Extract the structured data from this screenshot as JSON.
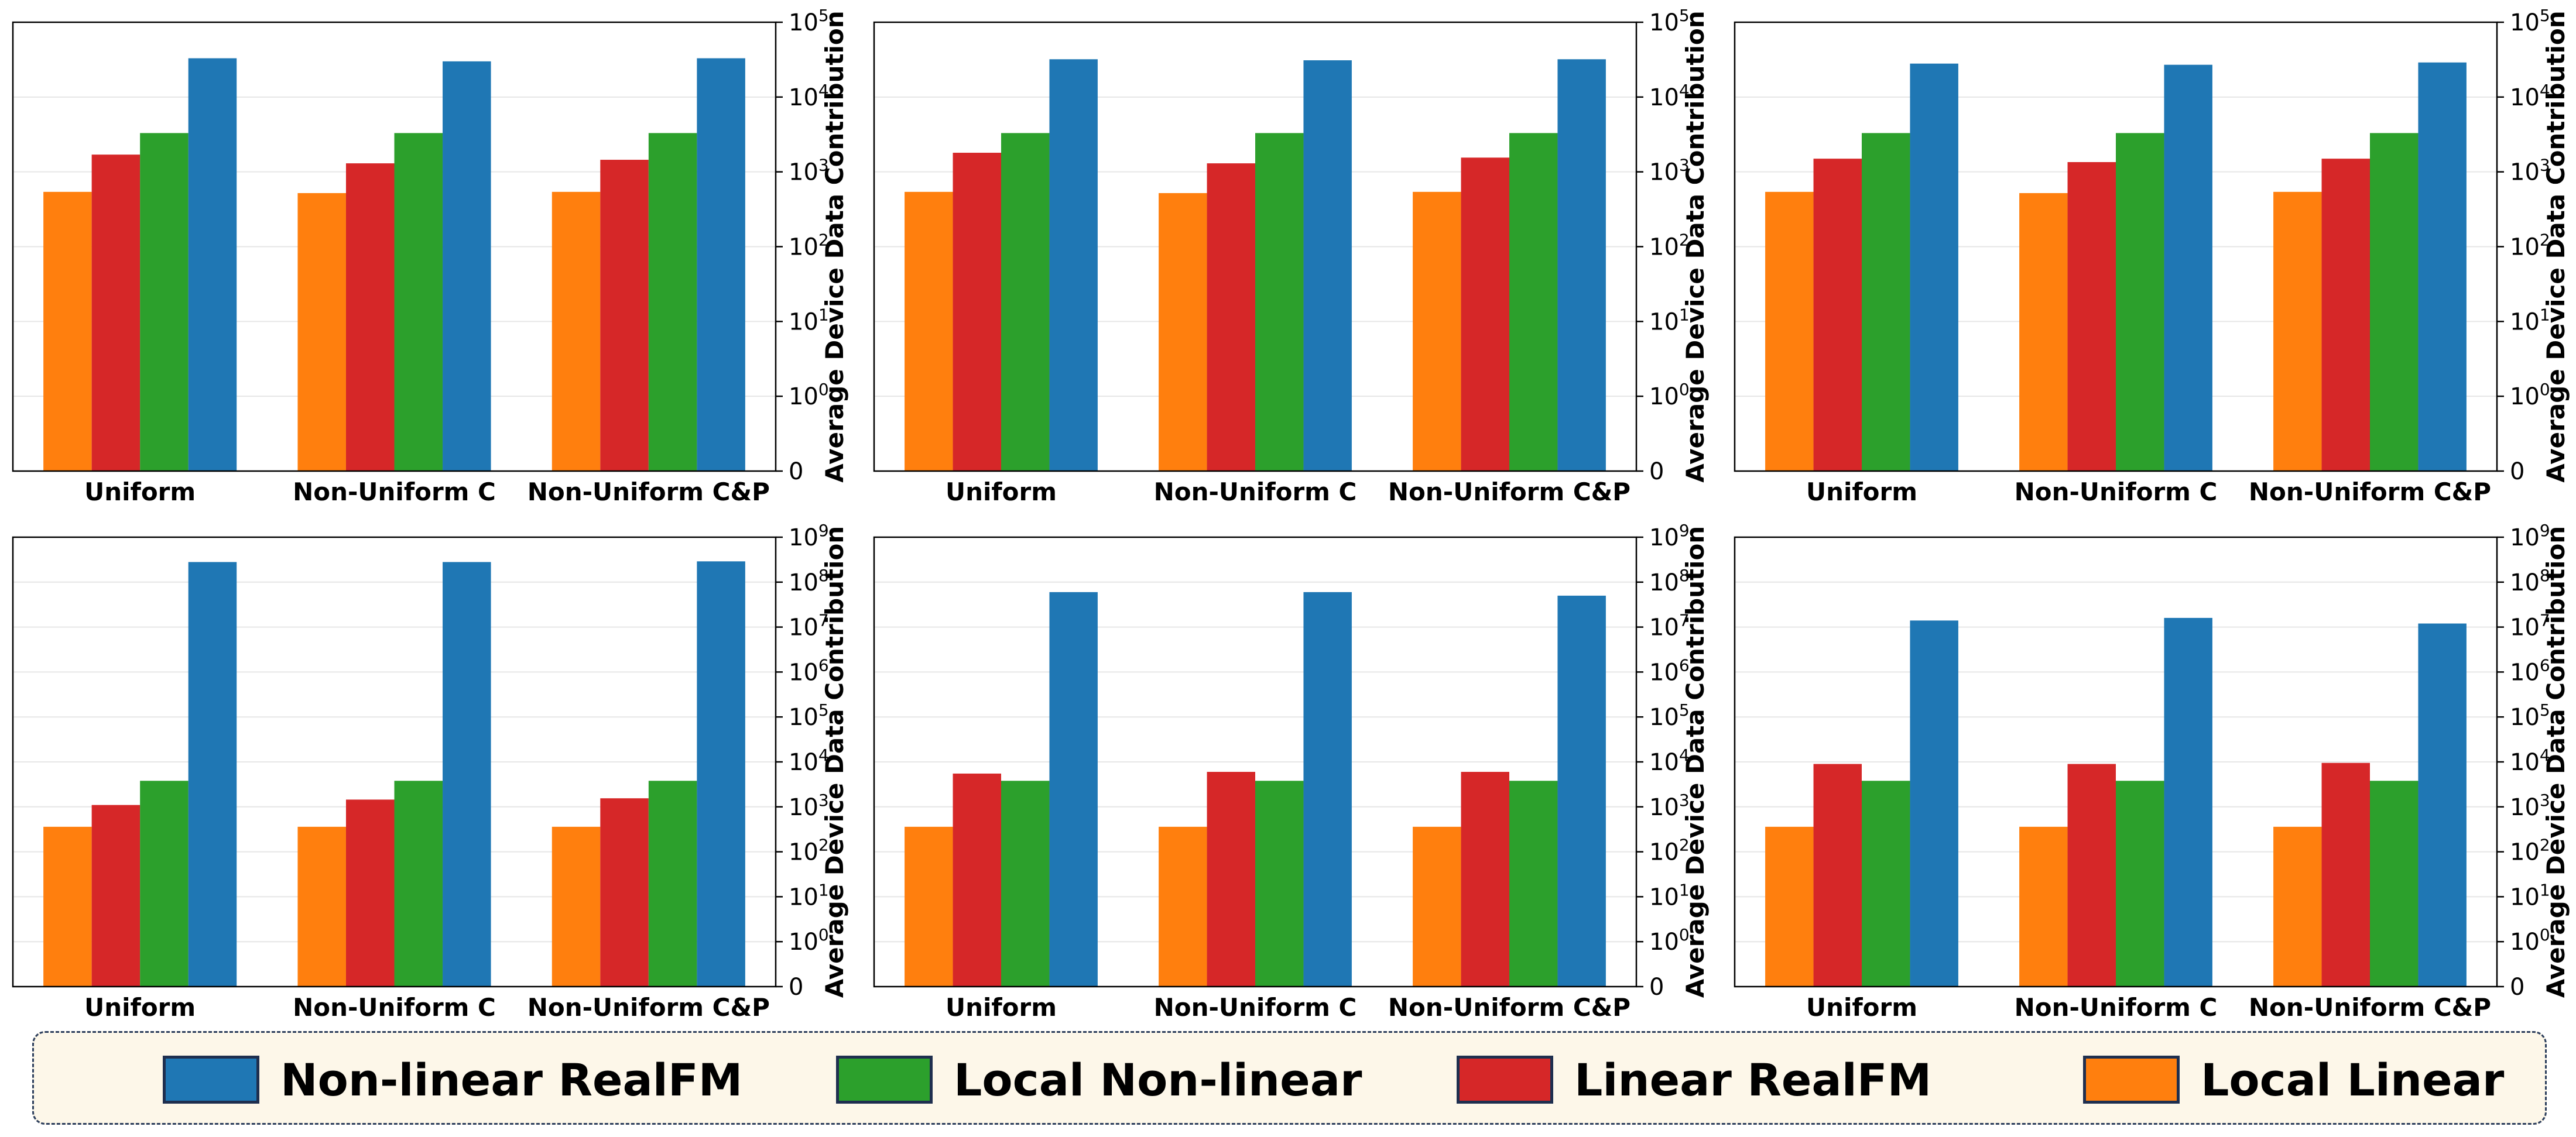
{
  "legend": {
    "items": [
      {
        "label": "Non-linear RealFM",
        "color": "#1f77b4"
      },
      {
        "label": "Local Non-linear",
        "color": "#2ca02c"
      },
      {
        "label": "Linear RealFM",
        "color": "#d62728"
      },
      {
        "label": "Local Linear",
        "color": "#ff7f0e"
      }
    ]
  },
  "chart_data": [
    {
      "type": "bar",
      "yscale": "symlog",
      "ylabel": "Average Device Data Contribution",
      "ylim": [
        0,
        100000
      ],
      "yticks": [
        "0",
        "10^0",
        "10^1",
        "10^2",
        "10^3",
        "10^4",
        "10^5"
      ],
      "categories": [
        "Uniform",
        "Non-Uniform C",
        "Non-Uniform C&P"
      ],
      "grid": true,
      "series": [
        {
          "name": "Local Linear",
          "color": "#ff7f0e",
          "values": [
            540,
            520,
            540
          ]
        },
        {
          "name": "Linear RealFM",
          "color": "#d62728",
          "values": [
            1700,
            1300,
            1450
          ]
        },
        {
          "name": "Local Non-linear",
          "color": "#2ca02c",
          "values": [
            3300,
            3300,
            3300
          ]
        },
        {
          "name": "Non-linear RealFM",
          "color": "#1f77b4",
          "values": [
            33000,
            30000,
            33000
          ]
        }
      ]
    },
    {
      "type": "bar",
      "yscale": "symlog",
      "ylabel": "Average Device Data Contribution",
      "ylim": [
        0,
        100000
      ],
      "yticks": [
        "0",
        "10^0",
        "10^1",
        "10^2",
        "10^3",
        "10^4",
        "10^5"
      ],
      "categories": [
        "Uniform",
        "Non-Uniform C",
        "Non-Uniform C&P"
      ],
      "grid": true,
      "series": [
        {
          "name": "Local Linear",
          "color": "#ff7f0e",
          "values": [
            540,
            520,
            540
          ]
        },
        {
          "name": "Linear RealFM",
          "color": "#d62728",
          "values": [
            1800,
            1300,
            1550
          ]
        },
        {
          "name": "Local Non-linear",
          "color": "#2ca02c",
          "values": [
            3300,
            3300,
            3300
          ]
        },
        {
          "name": "Non-linear RealFM",
          "color": "#1f77b4",
          "values": [
            32000,
            31000,
            32000
          ]
        }
      ]
    },
    {
      "type": "bar",
      "yscale": "symlog",
      "ylabel": "Average Device Data Contribution",
      "ylim": [
        0,
        100000
      ],
      "yticks": [
        "0",
        "10^0",
        "10^1",
        "10^2",
        "10^3",
        "10^4",
        "10^5"
      ],
      "categories": [
        "Uniform",
        "Non-Uniform C",
        "Non-Uniform C&P"
      ],
      "grid": true,
      "series": [
        {
          "name": "Local Linear",
          "color": "#ff7f0e",
          "values": [
            540,
            520,
            540
          ]
        },
        {
          "name": "Linear RealFM",
          "color": "#d62728",
          "values": [
            1500,
            1350,
            1500
          ]
        },
        {
          "name": "Local Non-linear",
          "color": "#2ca02c",
          "values": [
            3300,
            3300,
            3300
          ]
        },
        {
          "name": "Non-linear RealFM",
          "color": "#1f77b4",
          "values": [
            28000,
            27000,
            29000
          ]
        }
      ]
    },
    {
      "type": "bar",
      "yscale": "symlog",
      "ylabel": "Average Device Data Contribution",
      "ylim": [
        0,
        1000000000
      ],
      "yticks": [
        "0",
        "10^0",
        "10^1",
        "10^2",
        "10^3",
        "10^4",
        "10^5",
        "10^6",
        "10^7",
        "10^8",
        "10^9"
      ],
      "categories": [
        "Uniform",
        "Non-Uniform C",
        "Non-Uniform C&P"
      ],
      "grid": true,
      "series": [
        {
          "name": "Local Linear",
          "color": "#ff7f0e",
          "values": [
            360,
            360,
            360
          ]
        },
        {
          "name": "Linear RealFM",
          "color": "#d62728",
          "values": [
            1100,
            1450,
            1550
          ]
        },
        {
          "name": "Local Non-linear",
          "color": "#2ca02c",
          "values": [
            3800,
            3800,
            3800
          ]
        },
        {
          "name": "Non-linear RealFM",
          "color": "#1f77b4",
          "values": [
            280000000,
            280000000,
            290000000
          ]
        }
      ]
    },
    {
      "type": "bar",
      "yscale": "symlog",
      "ylabel": "Average Device Data Contribution",
      "ylim": [
        0,
        1000000000
      ],
      "yticks": [
        "0",
        "10^0",
        "10^1",
        "10^2",
        "10^3",
        "10^4",
        "10^5",
        "10^6",
        "10^7",
        "10^8",
        "10^9"
      ],
      "categories": [
        "Uniform",
        "Non-Uniform C",
        "Non-Uniform C&P"
      ],
      "grid": true,
      "series": [
        {
          "name": "Local Linear",
          "color": "#ff7f0e",
          "values": [
            360,
            360,
            360
          ]
        },
        {
          "name": "Linear RealFM",
          "color": "#d62728",
          "values": [
            5500,
            6000,
            6000
          ]
        },
        {
          "name": "Local Non-linear",
          "color": "#2ca02c",
          "values": [
            3800,
            3800,
            3800
          ]
        },
        {
          "name": "Non-linear RealFM",
          "color": "#1f77b4",
          "values": [
            60000000,
            60000000,
            50000000
          ]
        }
      ]
    },
    {
      "type": "bar",
      "yscale": "symlog",
      "ylabel": "Average Device Data Contribution",
      "ylim": [
        0,
        1000000000
      ],
      "yticks": [
        "0",
        "10^0",
        "10^1",
        "10^2",
        "10^3",
        "10^4",
        "10^5",
        "10^6",
        "10^7",
        "10^8",
        "10^9"
      ],
      "categories": [
        "Uniform",
        "Non-Uniform C",
        "Non-Uniform C&P"
      ],
      "grid": true,
      "series": [
        {
          "name": "Local Linear",
          "color": "#ff7f0e",
          "values": [
            360,
            360,
            360
          ]
        },
        {
          "name": "Linear RealFM",
          "color": "#d62728",
          "values": [
            9000,
            9000,
            9500
          ]
        },
        {
          "name": "Local Non-linear",
          "color": "#2ca02c",
          "values": [
            3800,
            3800,
            3800
          ]
        },
        {
          "name": "Non-linear RealFM",
          "color": "#1f77b4",
          "values": [
            14000000,
            16000000,
            12000000
          ]
        }
      ]
    }
  ]
}
